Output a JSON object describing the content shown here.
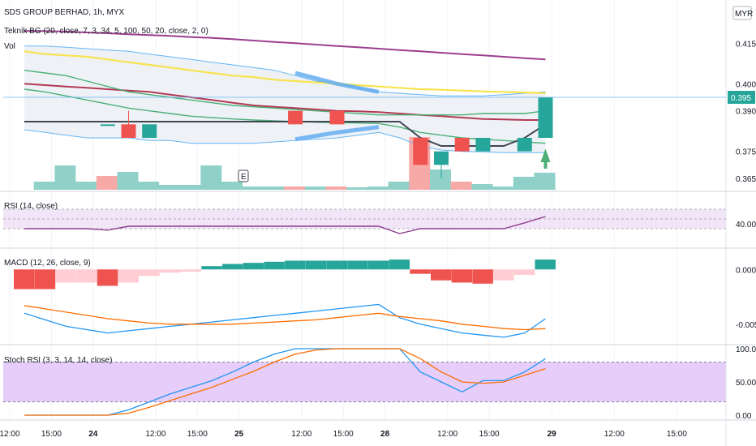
{
  "chart_data": {
    "type": "financial-multi-pane",
    "price_pane": {
      "title": "SDS GROUP BERHAD, 1h, MYX",
      "indicator_label": "Teknik BG (20, close, 7, 3, 34, 5, 100, 50, 20, close, 2, 0)",
      "volume_label": "Vol",
      "currency_label": "MYR",
      "y_ticks": [
        0.415,
        0.4,
        0.39,
        0.375,
        0.365
      ],
      "y_tick_labels": [
        "0.415",
        "0.400",
        "0.390",
        "0.375",
        "0.365"
      ],
      "current_price_label": "0.395",
      "current_price": 0.395,
      "earnings_marker": "E",
      "candles": [
        {
          "x": 4,
          "o": 0.385,
          "h": 0.385,
          "l": 0.385,
          "c": 0.385
        },
        {
          "x": 5,
          "o": 0.385,
          "h": 0.39,
          "l": 0.38,
          "c": 0.38
        },
        {
          "x": 6,
          "o": 0.38,
          "h": 0.385,
          "l": 0.38,
          "c": 0.385
        },
        {
          "x": 13,
          "o": 0.39,
          "h": 0.39,
          "l": 0.385,
          "c": 0.385
        },
        {
          "x": 15,
          "o": 0.39,
          "h": 0.39,
          "l": 0.385,
          "c": 0.385
        },
        {
          "x": 19,
          "o": 0.38,
          "h": 0.38,
          "l": 0.37,
          "c": 0.37
        },
        {
          "x": 20,
          "o": 0.37,
          "h": 0.375,
          "l": 0.365,
          "c": 0.375
        },
        {
          "x": 21,
          "o": 0.38,
          "h": 0.38,
          "l": 0.375,
          "c": 0.375
        },
        {
          "x": 22,
          "o": 0.375,
          "h": 0.38,
          "l": 0.375,
          "c": 0.38
        },
        {
          "x": 24,
          "o": 0.375,
          "h": 0.38,
          "l": 0.375,
          "c": 0.38
        },
        {
          "x": 25,
          "o": 0.38,
          "h": 0.395,
          "l": 0.38,
          "c": 0.395
        }
      ],
      "volume": [
        {
          "x": 1,
          "v": 1.0,
          "up": true
        },
        {
          "x": 2,
          "v": 3.0,
          "up": true
        },
        {
          "x": 3,
          "v": 1.0,
          "up": true
        },
        {
          "x": 4,
          "v": 1.7,
          "up": false
        },
        {
          "x": 5,
          "v": 2.2,
          "up": true
        },
        {
          "x": 6,
          "v": 1.0,
          "up": true
        },
        {
          "x": 7,
          "v": 0.6,
          "up": true
        },
        {
          "x": 8,
          "v": 0.6,
          "up": true
        },
        {
          "x": 9,
          "v": 3.0,
          "up": true
        },
        {
          "x": 10,
          "v": 1.0,
          "up": true
        },
        {
          "x": 11,
          "v": 0.4,
          "up": true
        },
        {
          "x": 12,
          "v": 0.4,
          "up": true
        },
        {
          "x": 13,
          "v": 0.4,
          "up": false
        },
        {
          "x": 14,
          "v": 0.4,
          "up": true
        },
        {
          "x": 15,
          "v": 0.4,
          "up": false
        },
        {
          "x": 16,
          "v": 0.3,
          "up": true
        },
        {
          "x": 17,
          "v": 0.4,
          "up": true
        },
        {
          "x": 18,
          "v": 1.0,
          "up": true
        },
        {
          "x": 19,
          "v": 6.5,
          "up": false
        },
        {
          "x": 20,
          "v": 2.5,
          "up": true
        },
        {
          "x": 21,
          "v": 1.0,
          "up": false
        },
        {
          "x": 22,
          "v": 0.7,
          "up": true
        },
        {
          "x": 23,
          "v": 0.4,
          "up": true
        },
        {
          "x": 24,
          "v": 1.6,
          "up": true
        },
        {
          "x": 25,
          "v": 2.1,
          "up": true
        }
      ],
      "close_line": [
        0.386,
        0.386,
        0.386,
        0.386,
        0.386,
        0.386,
        0.386,
        0.386,
        0.386,
        0.386,
        0.386,
        0.386,
        0.386,
        0.386,
        0.386,
        0.386,
        0.386,
        0.386,
        0.386,
        0.38,
        0.377,
        0.377,
        0.377,
        0.377,
        0.38,
        0.385
      ],
      "ma_purple": [
        0.4195,
        0.4195,
        0.4193,
        0.419,
        0.4187,
        0.4183,
        0.418,
        0.4177,
        0.4173,
        0.417,
        0.4165,
        0.416,
        0.4155,
        0.415,
        0.4145,
        0.414,
        0.4135,
        0.413,
        0.4125,
        0.412,
        0.4115,
        0.411,
        0.4105,
        0.41,
        0.4095,
        0.409
      ],
      "ma_yellow": [
        0.412,
        0.411,
        0.4105,
        0.41,
        0.409,
        0.408,
        0.407,
        0.406,
        0.405,
        0.404,
        0.403,
        0.4025,
        0.4015,
        0.401,
        0.4005,
        0.4,
        0.3995,
        0.399,
        0.3985,
        0.398,
        0.3978,
        0.3975,
        0.3972,
        0.397,
        0.3968,
        0.3965
      ],
      "ma_red": [
        0.4,
        0.3995,
        0.399,
        0.3985,
        0.398,
        0.3975,
        0.397,
        0.396,
        0.395,
        0.394,
        0.393,
        0.392,
        0.3915,
        0.391,
        0.3905,
        0.39,
        0.3898,
        0.3895,
        0.389,
        0.3885,
        0.388,
        0.3875,
        0.387,
        0.3868,
        0.3866,
        0.3866
      ],
      "ma_green_upper": [
        0.405,
        0.404,
        0.403,
        0.401,
        0.399,
        0.397,
        0.396,
        0.395,
        0.394,
        0.393,
        0.392,
        0.3915,
        0.391,
        0.3905,
        0.39,
        0.3895,
        0.389,
        0.3885,
        0.3885,
        0.3885,
        0.3885,
        0.3885,
        0.389,
        0.389,
        0.389,
        0.39
      ],
      "ma_green_lower": [
        0.398,
        0.397,
        0.3955,
        0.394,
        0.3925,
        0.391,
        0.39,
        0.389,
        0.388,
        0.3875,
        0.387,
        0.3866,
        0.3863,
        0.386,
        0.3858,
        0.3856,
        0.3855,
        0.3853,
        0.384,
        0.382,
        0.381,
        0.38,
        0.3795,
        0.379,
        0.3785,
        0.378
      ],
      "bb_upper": [
        0.414,
        0.414,
        0.4135,
        0.413,
        0.4125,
        0.412,
        0.411,
        0.41,
        0.409,
        0.408,
        0.407,
        0.406,
        0.405,
        0.403,
        0.401,
        0.4,
        0.3985,
        0.397,
        0.3965,
        0.396,
        0.3955,
        0.3955,
        0.3955,
        0.396,
        0.3965,
        0.397
      ],
      "bb_lower": [
        0.383,
        0.382,
        0.381,
        0.38,
        0.38,
        0.38,
        0.379,
        0.379,
        0.378,
        0.378,
        0.378,
        0.378,
        0.3785,
        0.379,
        0.3795,
        0.38,
        0.381,
        0.382,
        0.38,
        0.377,
        0.3755,
        0.375,
        0.3748,
        0.3745,
        0.3745,
        0.3745
      ]
    },
    "rsi_pane": {
      "label": "RSI (14, close)",
      "y_tick_label": "40.00",
      "y_ticks": [
        40
      ],
      "upper_band": 70,
      "lower_band": 30,
      "values": [
        30,
        30,
        30,
        30,
        27,
        35,
        35,
        35,
        35,
        35,
        35,
        35,
        35,
        35,
        35,
        35,
        35,
        35,
        20,
        30,
        30,
        30,
        30,
        30,
        42,
        55
      ]
    },
    "macd_pane": {
      "label": "MACD (12, 26, close, 9)",
      "y_tick_labels": [
        "0.000",
        "-0.005"
      ],
      "y_ticks": [
        0.0,
        -0.005
      ],
      "histogram": [
        -0.0018,
        -0.0018,
        -0.0012,
        -0.0012,
        -0.0015,
        -0.0012,
        -0.0006,
        -0.0003,
        -0.0002,
        0.0003,
        0.0005,
        0.0006,
        0.0007,
        0.0008,
        0.0008,
        0.0008,
        0.0008,
        0.0008,
        0.0009,
        -0.0004,
        -0.001,
        -0.0012,
        -0.0013,
        -0.001,
        -0.0005,
        0.0009
      ],
      "macd_line": [
        -0.004,
        -0.0046,
        -0.0052,
        -0.0055,
        -0.0058,
        -0.0056,
        -0.0054,
        -0.0052,
        -0.005,
        -0.0048,
        -0.0046,
        -0.0044,
        -0.0042,
        -0.004,
        -0.0038,
        -0.0036,
        -0.0034,
        -0.0032,
        -0.0044,
        -0.005,
        -0.0054,
        -0.0058,
        -0.006,
        -0.0062,
        -0.0058,
        -0.0045
      ],
      "signal_line": [
        -0.0033,
        -0.0036,
        -0.0039,
        -0.0042,
        -0.0045,
        -0.0047,
        -0.0049,
        -0.005,
        -0.005,
        -0.005,
        -0.005,
        -0.0049,
        -0.0048,
        -0.0047,
        -0.0046,
        -0.0044,
        -0.0042,
        -0.004,
        -0.0043,
        -0.0045,
        -0.0047,
        -0.005,
        -0.0052,
        -0.0054,
        -0.0055,
        -0.0054
      ]
    },
    "stoch_pane": {
      "label": "Stoch RSI (3, 3, 14, 14, close)",
      "y_tick_labels": [
        "100.00",
        "50.00",
        "0.00"
      ],
      "y_ticks": [
        100,
        50,
        0
      ],
      "upper_band": 80,
      "lower_band": 20,
      "k_line": [
        0,
        0,
        0,
        0,
        0,
        8,
        20,
        32,
        42,
        52,
        65,
        80,
        92,
        100,
        100,
        100,
        100,
        100,
        100,
        65,
        50,
        35,
        52,
        52,
        65,
        85
      ],
      "d_line": [
        0,
        0,
        0,
        0,
        0,
        3,
        12,
        22,
        32,
        42,
        54,
        66,
        80,
        92,
        98,
        100,
        100,
        100,
        100,
        85,
        65,
        50,
        48,
        50,
        60,
        70
      ]
    },
    "x_ticks": [
      {
        "label": "12:00",
        "x": 0
      },
      {
        "label": "15:00",
        "x": 2
      },
      {
        "label": "24",
        "x": 4
      },
      {
        "label": "12:00",
        "x": 7
      },
      {
        "label": "15:00",
        "x": 9
      },
      {
        "label": "25",
        "x": 11
      },
      {
        "label": "12:00",
        "x": 14
      },
      {
        "label": "15:00",
        "x": 16
      },
      {
        "label": "28",
        "x": 18
      },
      {
        "label": "12:00",
        "x": 21
      },
      {
        "label": "15:00",
        "x": 23
      },
      {
        "label": "29",
        "x": 26
      },
      {
        "label": "12:00",
        "x": 29
      },
      {
        "label": "15:00",
        "x": 32
      }
    ],
    "colors": {
      "up": "#26a69a",
      "down": "#ef5350",
      "vol_up": "#8fd1c8",
      "vol_down": "#f7a9a7",
      "purple": "#9c3e8e",
      "yellow": "#f7e34f",
      "red": "#b23a55",
      "green": "#4caf77",
      "band": "#64b5f6",
      "rsi_line": "#8e3d8e",
      "rsi_fill": "#f3e5f8",
      "stoch_fill": "#e6cdfa",
      "macd": "#2196f3",
      "signal": "#ff6d00",
      "hist_up": "#26a69a",
      "hist_down": "#ef5350",
      "hist_down_light": "#ffcdd2"
    }
  }
}
